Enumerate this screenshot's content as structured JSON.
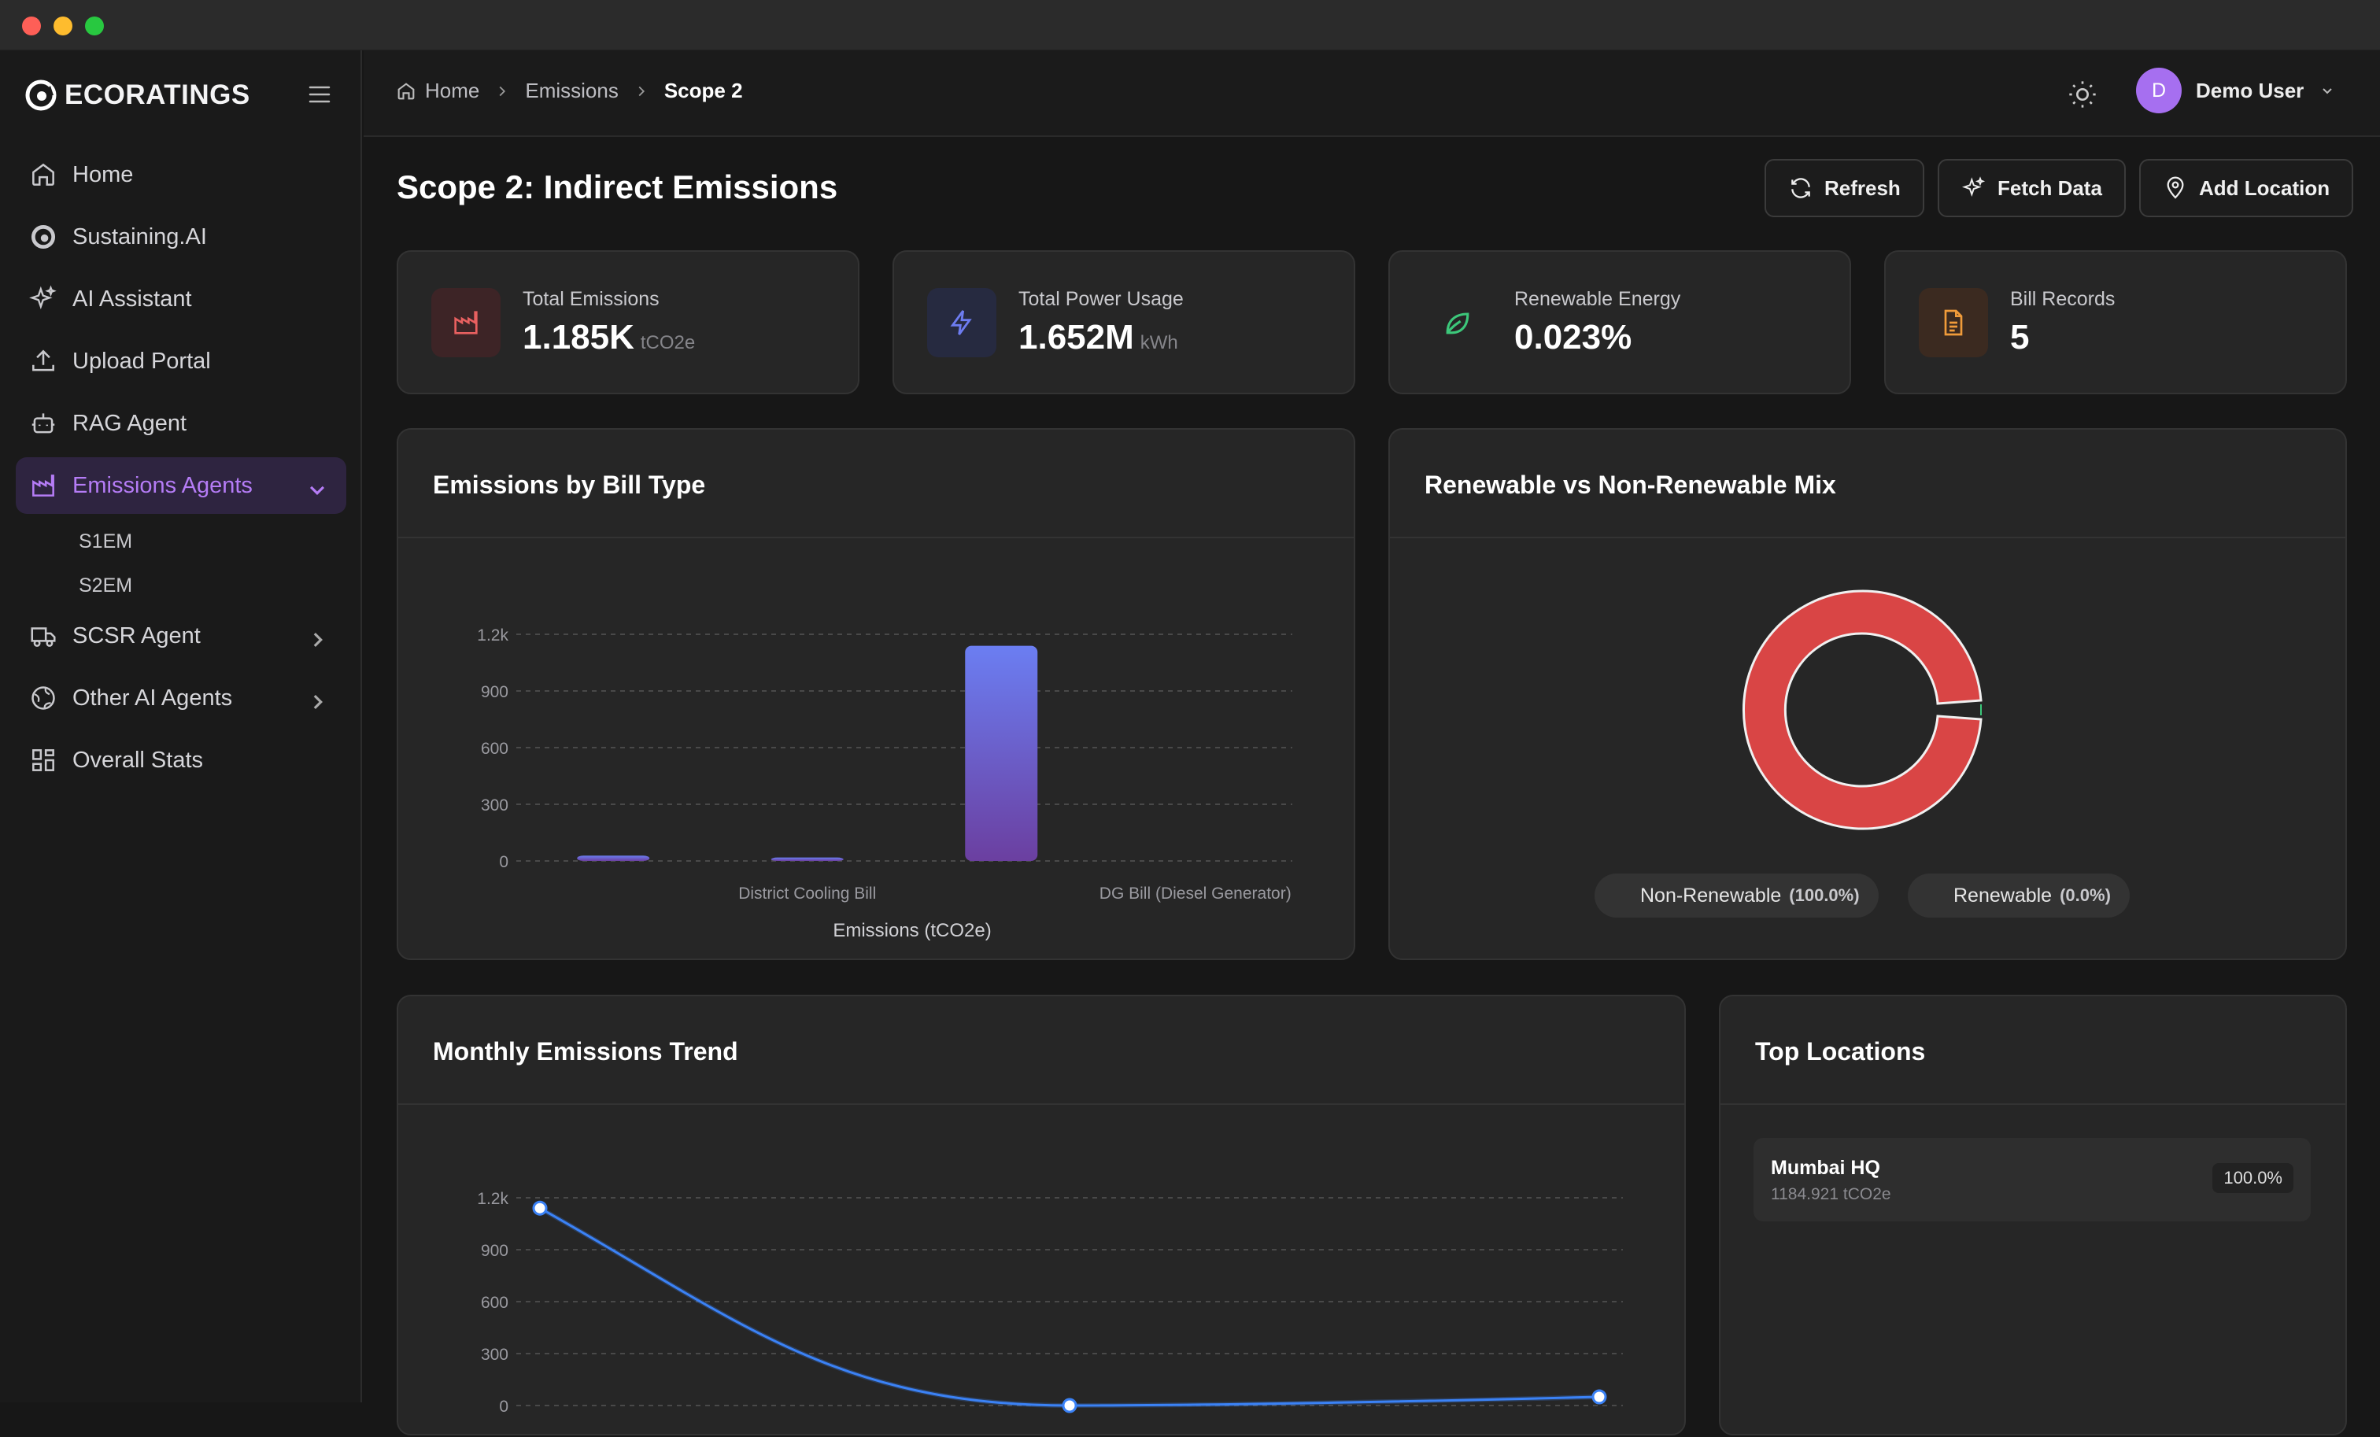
{
  "app": {
    "brand": "ECORATINGS"
  },
  "nav": {
    "items": [
      {
        "label": "Home",
        "icon": "home-icon"
      },
      {
        "label": "Sustaining.AI",
        "icon": "brand-icon"
      },
      {
        "label": "AI Assistant",
        "icon": "sparkles-icon"
      },
      {
        "label": "Upload Portal",
        "icon": "upload-icon"
      },
      {
        "label": "RAG Agent",
        "icon": "bot-icon"
      },
      {
        "label": "Emissions Agents",
        "icon": "factory-icon",
        "active": true
      },
      {
        "label": "SCSR Agent",
        "icon": "truck-icon"
      },
      {
        "label": "Other AI Agents",
        "icon": "globe-icon"
      },
      {
        "label": "Overall Stats",
        "icon": "grid-icon"
      }
    ],
    "sub_items": [
      "S1EM",
      "S2EM"
    ]
  },
  "breadcrumb": [
    "Home",
    "Emissions",
    "Scope 2"
  ],
  "user": {
    "initial": "D",
    "name": "Demo User"
  },
  "page": {
    "title": "Scope 2: Indirect Emissions"
  },
  "actions": {
    "refresh": "Refresh",
    "fetch": "Fetch Data",
    "add_location": "Add Location"
  },
  "stats": [
    {
      "label": "Total Emissions",
      "value": "1.185K",
      "unit": "tCO2e",
      "color": "#e05555"
    },
    {
      "label": "Total Power Usage",
      "value": "1.652M",
      "unit": "kWh",
      "color": "#6d7cf0"
    },
    {
      "label": "Renewable Energy",
      "value": "0.023%",
      "unit": "",
      "color": "#3cc77a"
    },
    {
      "label": "Bill Records",
      "value": "5",
      "unit": "",
      "color": "#f09b3a"
    }
  ],
  "panels": {
    "bill": "Emissions by Bill Type",
    "mix": "Renewable vs Non-Renewable Mix",
    "trend": "Monthly Emissions Trend",
    "locations": "Top Locations"
  },
  "chart_data": [
    {
      "type": "bar",
      "title": "Emissions by Bill Type",
      "xlabel": "Emissions (tCO2e)",
      "ylim": [
        0,
        1200
      ],
      "yticks": [
        "0",
        "300",
        "600",
        "900",
        "1.2k"
      ],
      "categories": [
        "",
        "District Cooling Bill",
        "",
        "DG Bill (Diesel Generator)"
      ],
      "values": [
        28,
        18,
        1139,
        0
      ],
      "grid": true
    },
    {
      "type": "pie",
      "title": "Renewable vs Non-Renewable Mix",
      "slices": [
        {
          "name": "Non-Renewable",
          "pct_label": "(100.0%)",
          "value": 100.0,
          "color": "#d94545"
        },
        {
          "name": "Renewable",
          "pct_label": "(0.0%)",
          "value": 0.0,
          "color": "#3cc77a"
        }
      ]
    },
    {
      "type": "line",
      "title": "Monthly Emissions Trend",
      "ylim": [
        0,
        1200
      ],
      "yticks": [
        "0",
        "300",
        "600",
        "900",
        "1.2k"
      ],
      "values": [
        1140,
        0,
        50
      ],
      "grid": true
    }
  ],
  "locations": [
    {
      "name": "Mumbai HQ",
      "value": "1184.921 tCO2e",
      "pct": "100.0%"
    }
  ]
}
